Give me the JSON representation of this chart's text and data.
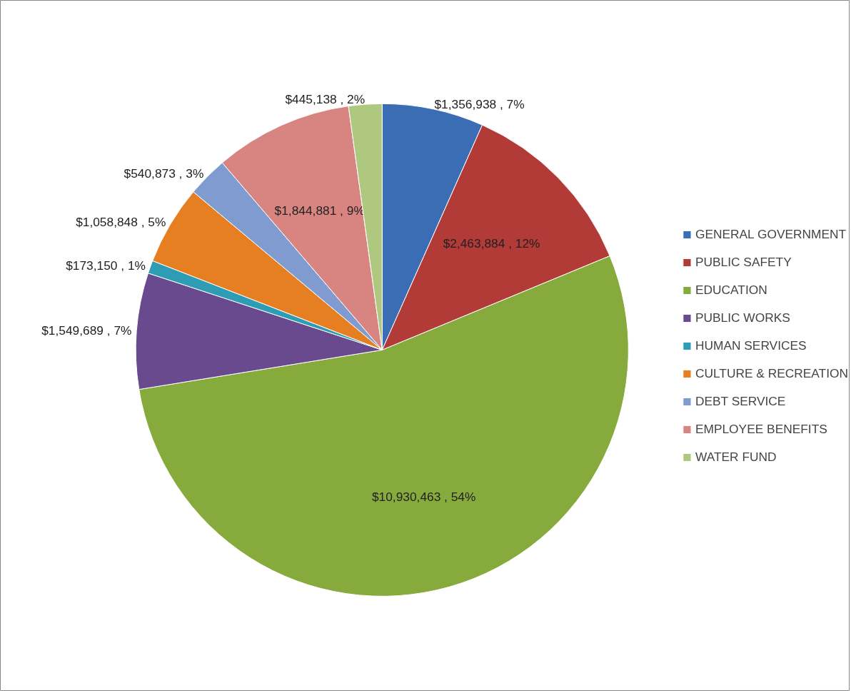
{
  "chart_data": {
    "type": "pie",
    "categories": [
      "GENERAL GOVERNMENT",
      "PUBLIC SAFETY",
      "EDUCATION",
      "PUBLIC WORKS",
      "HUMAN SERVICES",
      "CULTURE & RECREATION",
      "DEBT SERVICE",
      "EMPLOYEE BENEFITS",
      "WATER FUND"
    ],
    "values": [
      1356938,
      2463884,
      10930463,
      1549689,
      173150,
      1058848,
      540873,
      1844881,
      445138
    ],
    "colors": [
      "#3a6db3",
      "#b23a37",
      "#86aa3c",
      "#6a4a8e",
      "#2e9cb5",
      "#e67e22",
      "#7f9bd0",
      "#d88582",
      "#aec97f"
    ],
    "value_labels": [
      "$1,356,938 , 7%",
      "$2,463,884 , 12%",
      "$10,930,463 , 54%",
      "$1,549,689 , 7%",
      "$173,150 , 1%",
      "$1,058,848 , 5%",
      "$540,873 , 3%",
      "$1,844,881 , 9%",
      "$445,138 , 2%"
    ],
    "legend": "right"
  }
}
